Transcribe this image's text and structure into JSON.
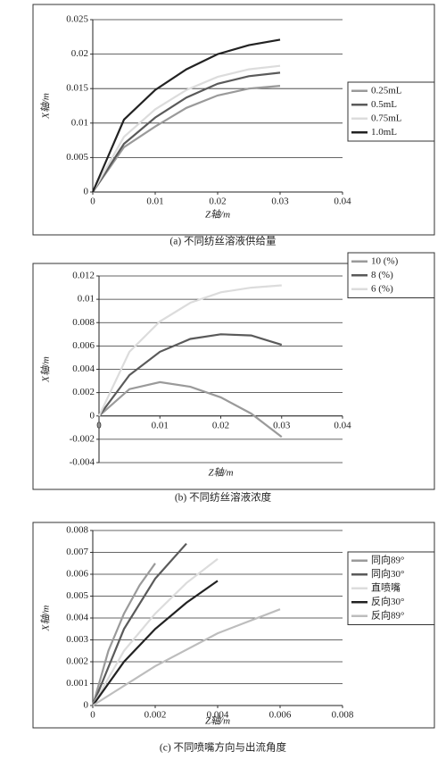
{
  "chart_data": [
    {
      "type": "line",
      "caption": "(a) 不同纺丝溶液供给量",
      "xlabel": "Z轴/m",
      "ylabel": "X轴/m",
      "xlim": [
        0,
        0.04
      ],
      "xticks": [
        0,
        0.01,
        0.02,
        0.03,
        0.04
      ],
      "ylim": [
        0,
        0.025
      ],
      "yticks": [
        0,
        0.005,
        0.01,
        0.015,
        0.02,
        0.025
      ],
      "grid": true,
      "legend": "right",
      "series": [
        {
          "name": "0.25mL",
          "color": "#9a9a9a",
          "x": [
            0,
            0.005,
            0.01,
            0.015,
            0.02,
            0.025,
            0.03
          ],
          "values": [
            0,
            0.0065,
            0.0095,
            0.0122,
            0.014,
            0.015,
            0.0154
          ]
        },
        {
          "name": "0.5mL",
          "color": "#5a5a5a",
          "x": [
            0,
            0.005,
            0.01,
            0.015,
            0.02,
            0.025,
            0.03
          ],
          "values": [
            0,
            0.007,
            0.0108,
            0.0137,
            0.0157,
            0.0168,
            0.0173
          ]
        },
        {
          "name": "0.75mL",
          "color": "#dcdcdc",
          "x": [
            0,
            0.005,
            0.01,
            0.015,
            0.02,
            0.025,
            0.03
          ],
          "values": [
            0,
            0.008,
            0.012,
            0.0148,
            0.0167,
            0.0178,
            0.0183
          ]
        },
        {
          "name": "1.0mL",
          "color": "#222222",
          "x": [
            0,
            0.005,
            0.01,
            0.015,
            0.02,
            0.025,
            0.03
          ],
          "values": [
            0,
            0.0105,
            0.0148,
            0.0178,
            0.02,
            0.0213,
            0.0221
          ]
        }
      ]
    },
    {
      "type": "line",
      "caption": "(b) 不同纺丝溶液浓度",
      "xlabel": "Z轴/m",
      "ylabel": "X轴/m",
      "xlim": [
        0,
        0.04
      ],
      "xticks": [
        0,
        0.01,
        0.02,
        0.03,
        0.04
      ],
      "ylim": [
        -0.004,
        0.012
      ],
      "yticks": [
        -0.004,
        -0.002,
        0,
        0.002,
        0.004,
        0.006,
        0.008,
        0.01,
        0.012
      ],
      "grid": true,
      "legend": "right",
      "series": [
        {
          "name": "10 (%)",
          "color": "#9a9a9a",
          "x": [
            0,
            0.005,
            0.01,
            0.015,
            0.02,
            0.025,
            0.03
          ],
          "values": [
            0,
            0.0023,
            0.0029,
            0.0025,
            0.0016,
            0.0002,
            -0.0018
          ]
        },
        {
          "name": "8 (%)",
          "color": "#5a5a5a",
          "x": [
            0,
            0.005,
            0.01,
            0.015,
            0.02,
            0.025,
            0.03
          ],
          "values": [
            0,
            0.0035,
            0.0055,
            0.0066,
            0.007,
            0.0069,
            0.0061
          ]
        },
        {
          "name": "6 (%)",
          "color": "#dcdcdc",
          "x": [
            0,
            0.005,
            0.01,
            0.015,
            0.02,
            0.025,
            0.03
          ],
          "values": [
            0,
            0.0055,
            0.0081,
            0.0097,
            0.0106,
            0.011,
            0.0112
          ]
        }
      ]
    },
    {
      "type": "line",
      "caption": "(c) 不同喷嘴方向与出流角度",
      "xlabel": "Z轴/m",
      "ylabel": "X轴/m",
      "xlim": [
        0,
        0.008
      ],
      "xticks": [
        0,
        0.002,
        0.004,
        0.006,
        0.008
      ],
      "ylim": [
        0,
        0.008
      ],
      "yticks": [
        0,
        0.001,
        0.002,
        0.003,
        0.004,
        0.005,
        0.006,
        0.007,
        0.008
      ],
      "grid": true,
      "legend": "right",
      "series": [
        {
          "name": "同向89°",
          "color": "#9a9a9a",
          "x": [
            0,
            0.0005,
            0.001,
            0.0015,
            0.002
          ],
          "values": [
            0,
            0.0025,
            0.0042,
            0.0055,
            0.0065
          ]
        },
        {
          "name": "同向30°",
          "color": "#5a5a5a",
          "x": [
            0,
            0.001,
            0.002,
            0.003
          ],
          "values": [
            0,
            0.0035,
            0.0058,
            0.0074
          ]
        },
        {
          "name": "直喷嘴",
          "color": "#dcdcdc",
          "x": [
            0,
            0.001,
            0.002,
            0.003,
            0.004
          ],
          "values": [
            0,
            0.0025,
            0.0042,
            0.0056,
            0.0067
          ]
        },
        {
          "name": "反向30°",
          "color": "#222222",
          "x": [
            0,
            0.001,
            0.002,
            0.003,
            0.004
          ],
          "values": [
            0,
            0.002,
            0.0035,
            0.0047,
            0.0057
          ]
        },
        {
          "name": "反向89°",
          "color": "#bdbdbd",
          "x": [
            0,
            0.002,
            0.004,
            0.006
          ],
          "values": [
            0,
            0.0018,
            0.0033,
            0.0044
          ]
        }
      ]
    }
  ]
}
